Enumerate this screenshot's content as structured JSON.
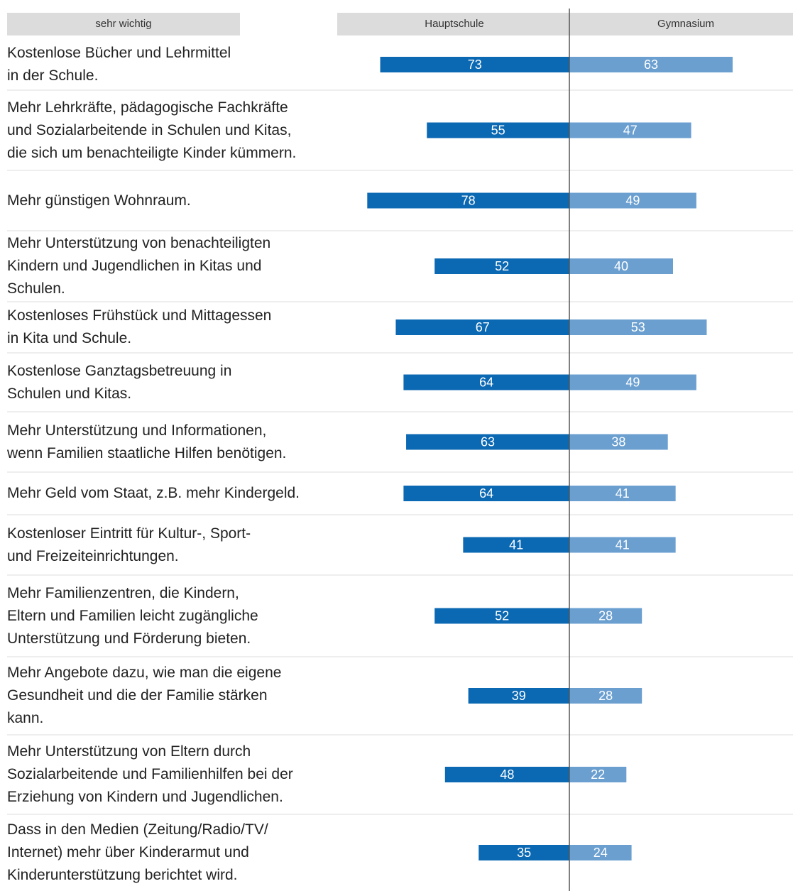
{
  "chart_data": {
    "type": "butterfly-bar",
    "header_label": "sehr wichtig",
    "categories": [
      "Kostenlose Bücher und Lehrmittel\nin der Schule.",
      "Mehr Lehrkräfte, pädagogische Fachkräfte\nund Sozialarbeitende in Schulen und Kitas,\ndie sich um benachteiligte Kinder kümmern.",
      "Mehr günstigen Wohnraum.",
      "Mehr Unterstützung von benachteiligten\nKindern und Jugendlichen in Kitas und\nSchulen.",
      "Kostenloses Frühstück und Mittagessen\nin Kita und Schule.",
      "Kostenlose Ganztagsbetreuung in\nSchulen und Kitas.",
      "Mehr Unterstützung und Informationen,\nwenn Familien staatliche Hilfen benötigen.",
      "Mehr Geld vom Staat, z.B. mehr Kindergeld.",
      "Kostenloser Eintritt für Kultur-, Sport-\nund Freizeiteinrichtungen.",
      "Mehr Familienzentren, die Kindern,\nEltern und Familien leicht zugängliche\nUnterstützung und Förderung bieten.",
      "Mehr Angebote dazu, wie man die eigene\nGesundheit und die der Familie stärken\nkann.",
      "Mehr Unterstützung von Eltern durch\nSozialarbeitende und Familienhilfen bei der\nErziehung von Kindern und Jugendlichen.",
      "Dass in den Medien (Zeitung/Radio/TV/\nInternet) mehr über Kinderarmut und\nKinderunterstützung berichtet wird."
    ],
    "series": [
      {
        "name": "Hauptschule",
        "color": "#0b68b3",
        "values": [
          73,
          55,
          78,
          52,
          67,
          64,
          63,
          64,
          41,
          52,
          39,
          48,
          35
        ]
      },
      {
        "name": "Gymnasium",
        "color": "#6a9fd0",
        "values": [
          63,
          47,
          49,
          40,
          53,
          49,
          38,
          41,
          41,
          28,
          28,
          22,
          24
        ]
      }
    ],
    "xlim": [
      0,
      100
    ]
  }
}
